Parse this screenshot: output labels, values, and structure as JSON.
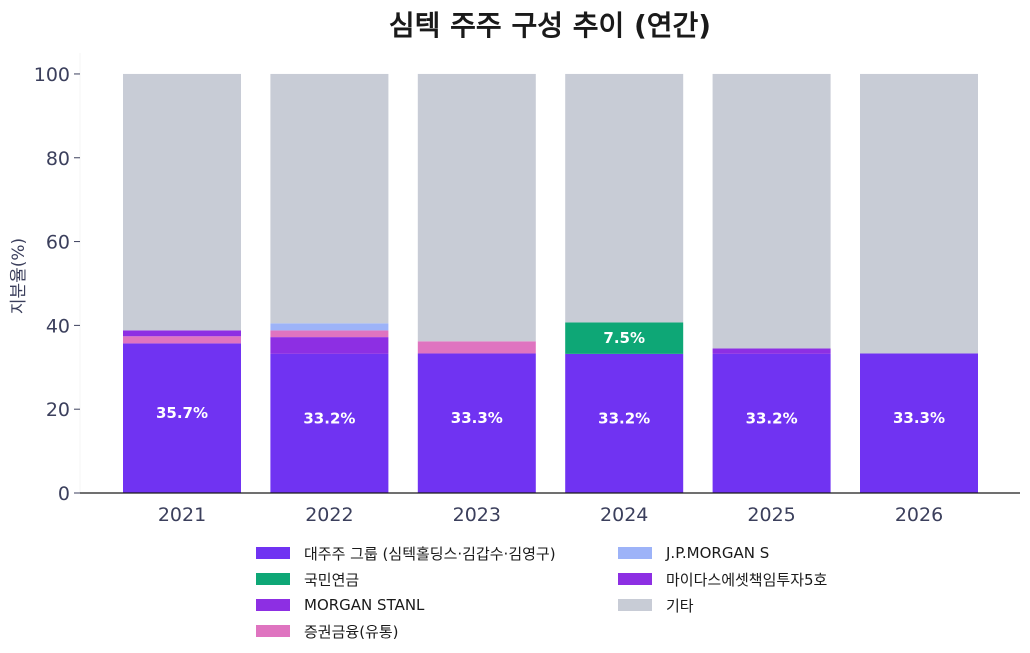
{
  "chart_data": {
    "type": "bar",
    "stacked": true,
    "title": "심텍 주주 구성 추이 (연간)",
    "xlabel": "",
    "ylabel": "지분율(%)",
    "ylim": [
      0,
      105
    ],
    "yticks": [
      0,
      20,
      40,
      60,
      80,
      100
    ],
    "categories": [
      "2021",
      "2022",
      "2023",
      "2024",
      "2025",
      "2026"
    ],
    "series": [
      {
        "name": "대주주 그룹 (심텍홀딩스·김갑수·김영구)",
        "color": "#7033f2",
        "values": [
          35.7,
          33.2,
          33.3,
          33.2,
          33.2,
          33.3
        ],
        "labels": [
          "35.7%",
          "33.2%",
          "33.3%",
          "33.2%",
          "33.2%",
          "33.3%"
        ]
      },
      {
        "name": "국민연금",
        "color": "#0ea776",
        "values": [
          0,
          0,
          0,
          7.5,
          0,
          0
        ],
        "labels": [
          "",
          "",
          "",
          "7.5%",
          "",
          ""
        ]
      },
      {
        "name": "MORGAN STANL",
        "color": "#8d2fe3",
        "values": [
          0,
          4.0,
          0,
          0,
          0,
          0
        ],
        "labels": [
          "",
          "",
          "",
          "",
          "",
          ""
        ]
      },
      {
        "name": "증권금융(유통)",
        "color": "#df74c0",
        "values": [
          1.7,
          1.6,
          2.9,
          0,
          0,
          0
        ],
        "labels": [
          "",
          "",
          "",
          "",
          "",
          ""
        ]
      },
      {
        "name": "J.P.MORGAN S",
        "color": "#9db3f8",
        "values": [
          0,
          1.7,
          0,
          0,
          0,
          0
        ],
        "labels": [
          "",
          "",
          "",
          "",
          "",
          ""
        ]
      },
      {
        "name": "마이다스에셋책임투자5호",
        "color": "#8d2fe3",
        "values": [
          1.4,
          0,
          0,
          0,
          1.3,
          0
        ],
        "labels": [
          "",
          "",
          "",
          "",
          "",
          ""
        ]
      },
      {
        "name": "기타",
        "color": "#c8ccd6",
        "values": [
          61.2,
          59.5,
          63.8,
          59.3,
          65.5,
          66.7
        ],
        "labels": [
          "",
          "",
          "",
          "",
          "",
          ""
        ]
      }
    ],
    "legend_position": "bottom",
    "grid": false
  }
}
